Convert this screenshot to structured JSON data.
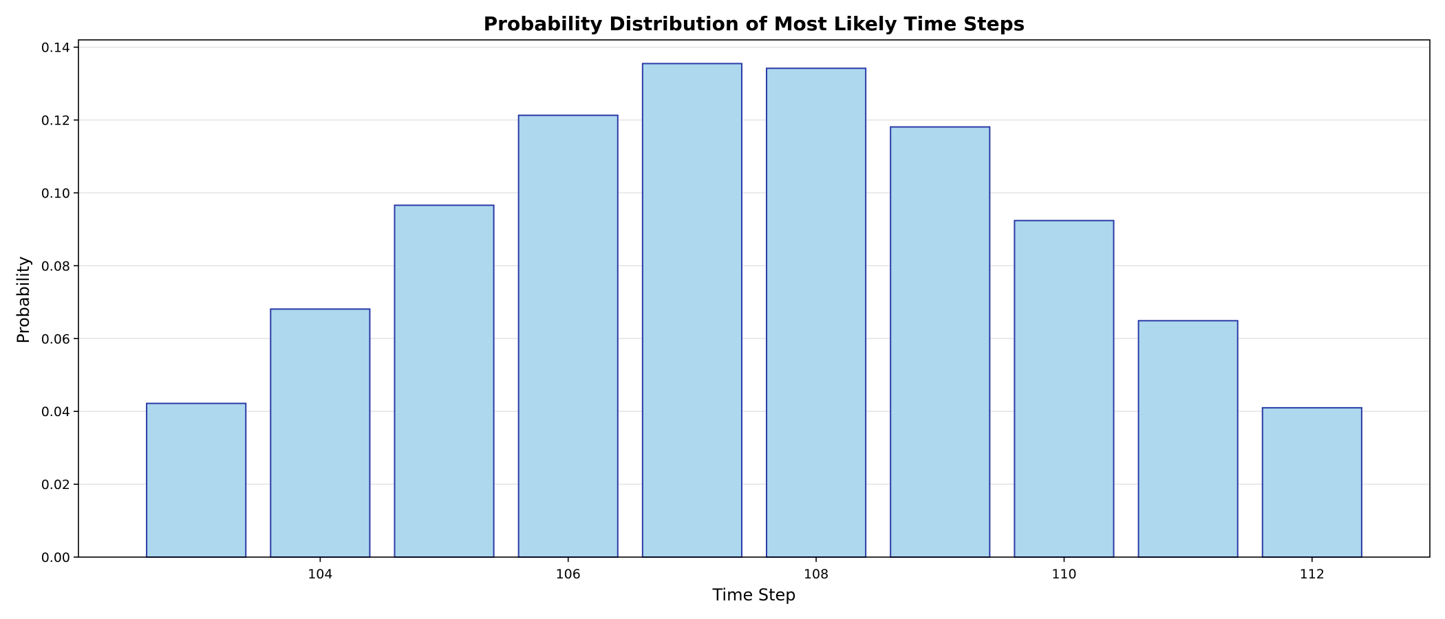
{
  "chart_data": {
    "type": "bar",
    "title": "Probability Distribution of Most Likely Time Steps",
    "xlabel": "Time Step",
    "ylabel": "Probability",
    "x": [
      103,
      104,
      105,
      106,
      107,
      108,
      109,
      110,
      111,
      112
    ],
    "values": [
      0.0422,
      0.0681,
      0.0966,
      0.1213,
      0.1355,
      0.1342,
      0.1181,
      0.0924,
      0.0649,
      0.041
    ],
    "xlim": [
      102.05,
      112.95
    ],
    "ylim": [
      0,
      0.142
    ],
    "xticks": [
      104,
      106,
      108,
      110,
      112
    ],
    "xtick_labels": [
      "104",
      "106",
      "108",
      "110",
      "112"
    ],
    "yticks": [
      0.0,
      0.02,
      0.04,
      0.06,
      0.08,
      0.1,
      0.12,
      0.14
    ],
    "ytick_labels": [
      "0.00",
      "0.02",
      "0.04",
      "0.06",
      "0.08",
      "0.10",
      "0.12",
      "0.14"
    ],
    "grid": "y",
    "colors": {
      "bar_fill": "#add8ee",
      "bar_edge": "#2b3aa6",
      "grid": "#e3e3e3"
    }
  }
}
